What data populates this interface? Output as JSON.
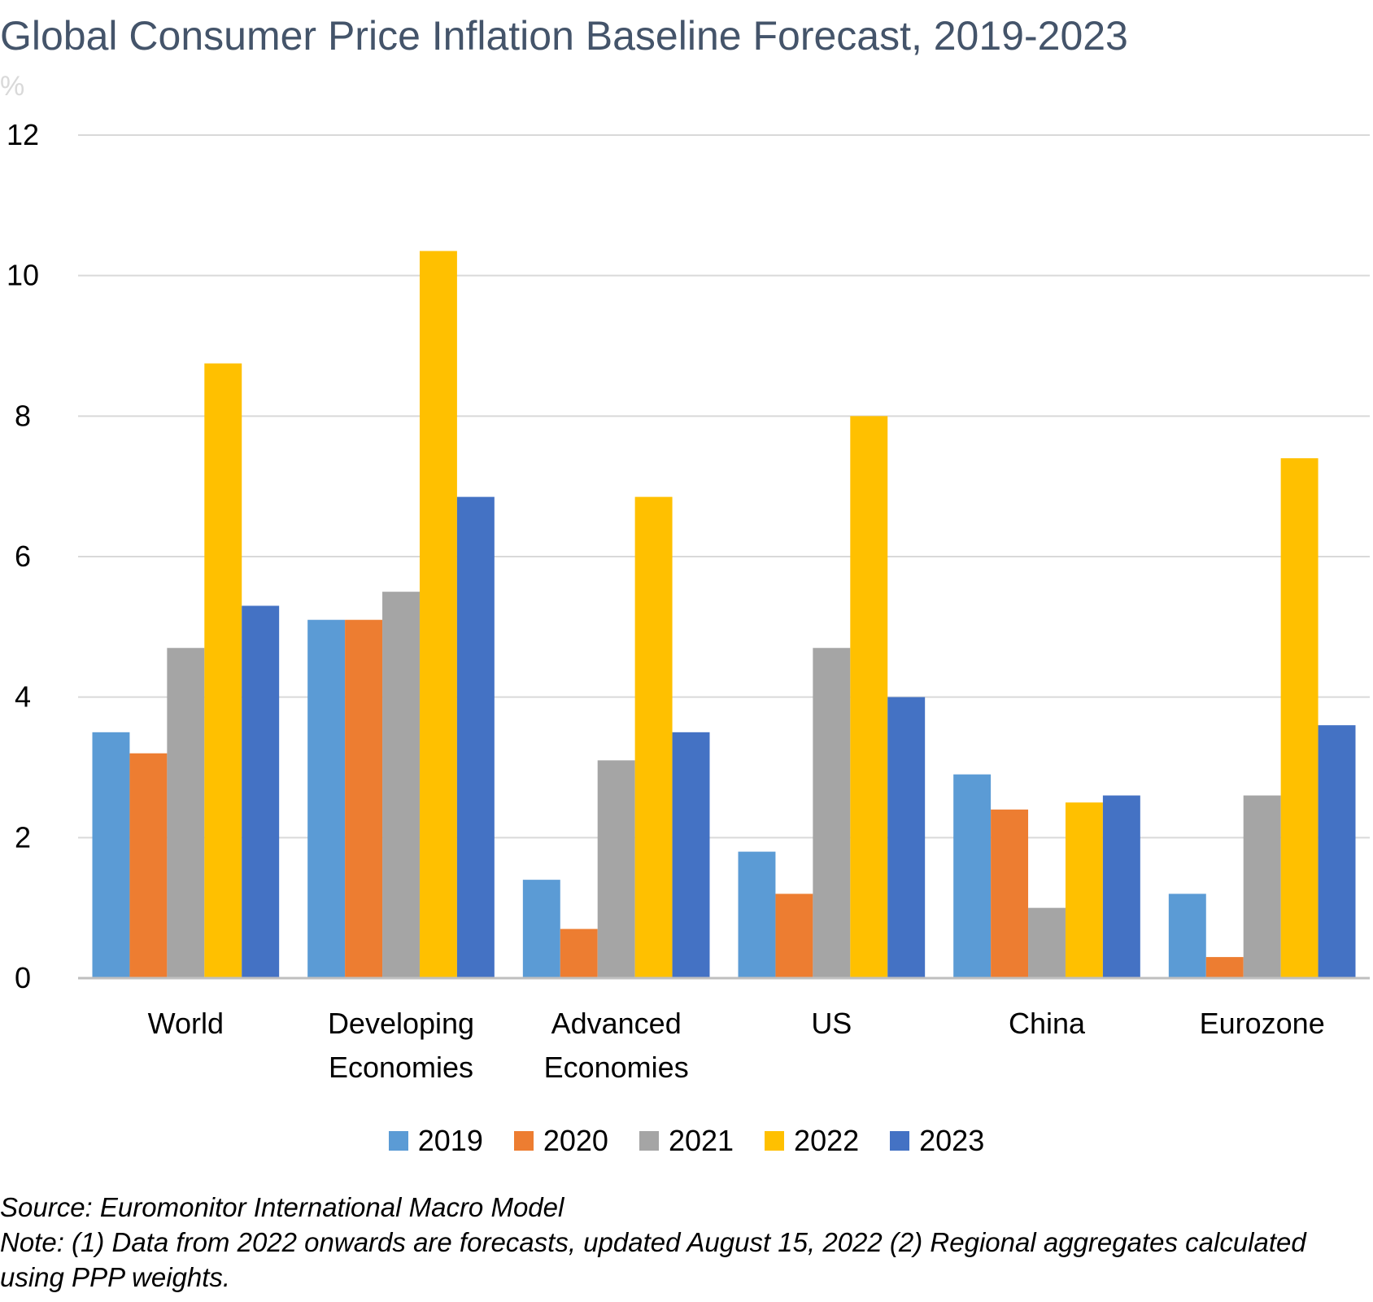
{
  "chart_data": {
    "type": "bar",
    "title": "Global Consumer Price Inflation Baseline Forecast, 2019-2023",
    "ylabel": "%",
    "xlabel": "",
    "ylim": [
      0,
      12
    ],
    "yticks": [
      0,
      2,
      4,
      6,
      8,
      10,
      12
    ],
    "grid": true,
    "legend_position": "bottom",
    "categories": [
      [
        "World"
      ],
      [
        "Developing",
        "Economies"
      ],
      [
        "Advanced",
        "Economies"
      ],
      [
        "US"
      ],
      [
        "China"
      ],
      [
        "Eurozone"
      ]
    ],
    "series": [
      {
        "name": "2019",
        "color": "#5b9bd5",
        "values": [
          3.5,
          5.1,
          1.4,
          1.8,
          2.9,
          1.2
        ]
      },
      {
        "name": "2020",
        "color": "#ed7d31",
        "values": [
          3.2,
          5.1,
          0.7,
          1.2,
          2.4,
          0.3
        ]
      },
      {
        "name": "2021",
        "color": "#a5a5a5",
        "values": [
          4.7,
          5.5,
          3.1,
          4.7,
          1.0,
          2.6
        ]
      },
      {
        "name": "2022",
        "color": "#ffc000",
        "values": [
          8.75,
          10.35,
          6.85,
          8.0,
          2.5,
          7.4
        ]
      },
      {
        "name": "2023",
        "color": "#4472c4",
        "values": [
          5.3,
          6.85,
          3.5,
          4.0,
          2.6,
          3.6
        ]
      }
    ],
    "source": "Source: Euromonitor International Macro Model",
    "note": "Note: (1) Data from 2022 onwards are forecasts, updated August 15, 2022 (2) Regional aggregates calculated using PPP weights."
  },
  "colors": {
    "title": "#44546a",
    "grid": "#d9d9d9",
    "axis": "#bfbfbf"
  }
}
